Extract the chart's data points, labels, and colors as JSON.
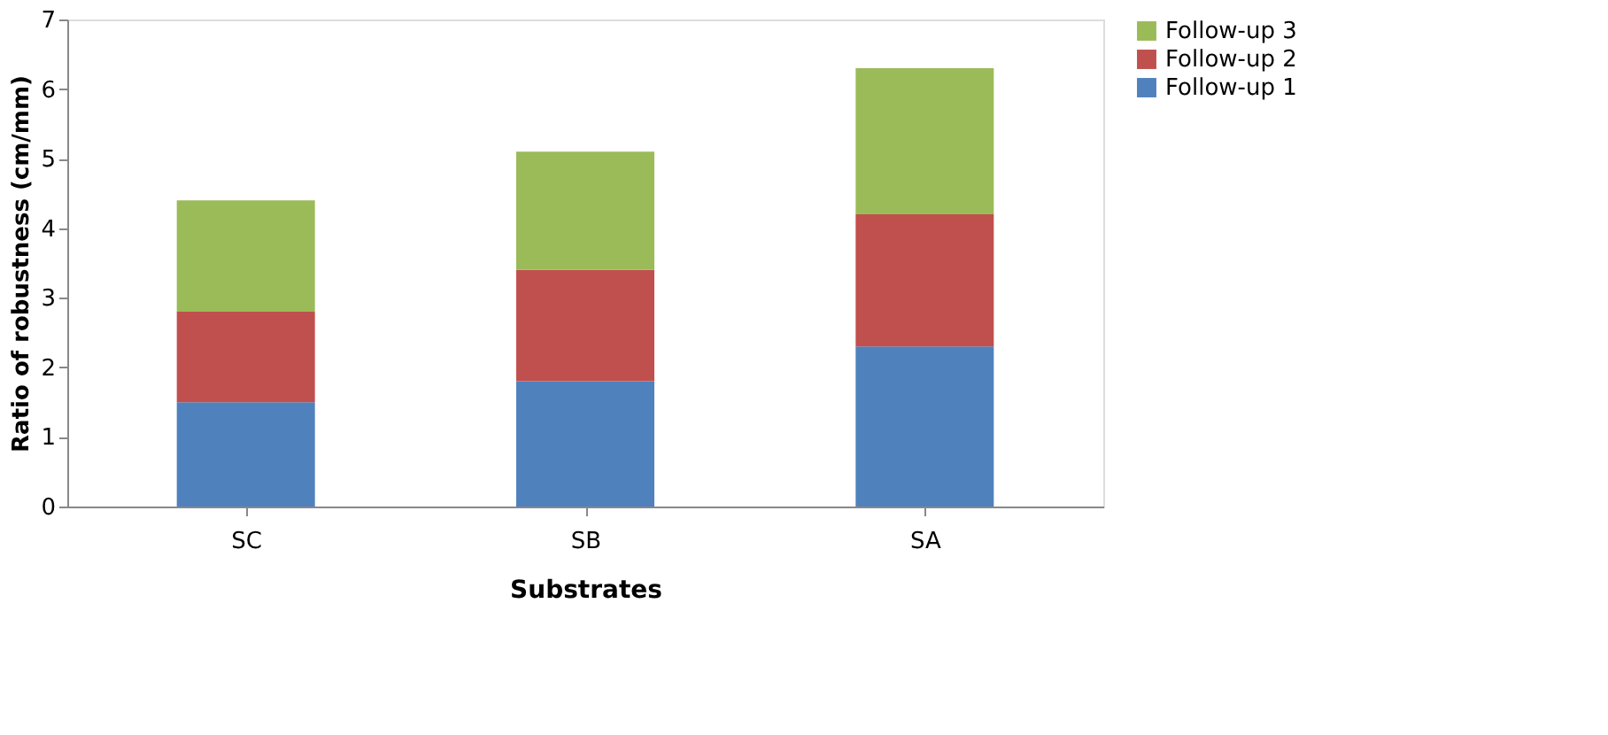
{
  "chart_data": {
    "type": "bar",
    "stacked": true,
    "xlabel": "Substrates",
    "ylabel": "Ratio of robustness (cm/mm)",
    "categories": [
      "SC",
      "SB",
      "SA"
    ],
    "series": [
      {
        "name": "Follow-up 1",
        "color": "#4f81bd",
        "values": [
          1.5,
          1.8,
          2.3
        ]
      },
      {
        "name": "Follow-up 2",
        "color": "#c0504d",
        "values": [
          1.3,
          1.6,
          1.9
        ]
      },
      {
        "name": "Follow-up 3",
        "color": "#9bbb59",
        "values": [
          1.6,
          1.7,
          2.1
        ]
      }
    ],
    "ylim": [
      0,
      7
    ],
    "yticks": [
      0,
      1,
      2,
      3,
      4,
      5,
      6,
      7
    ],
    "grid": false,
    "legend": "right"
  }
}
